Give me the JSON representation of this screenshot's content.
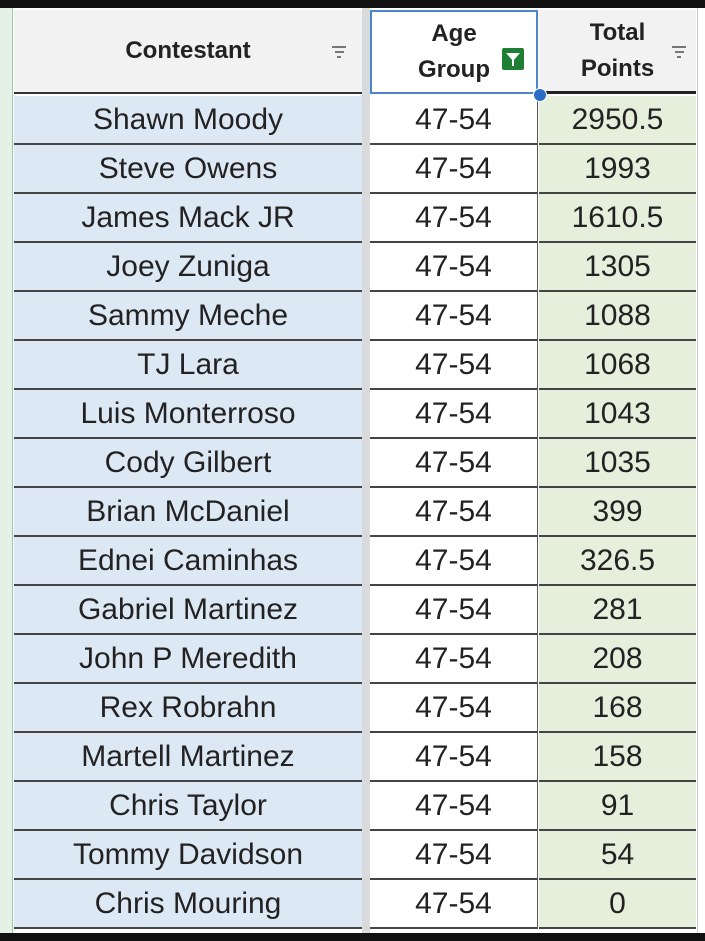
{
  "headers": {
    "contestant": "Contestant",
    "age_line1": "Age",
    "age_line2": "Group",
    "points_line1": "Total",
    "points_line2": "Points"
  },
  "icons": {
    "contestant_filter": "filter-lines-icon",
    "age_filter": "filter-active-funnel-icon",
    "points_filter": "filter-lines-icon"
  },
  "colors": {
    "name_fill": "#dde8f5",
    "points_fill": "#e5efdc",
    "active_filter": "#1e7e34",
    "selection": "#4a86c8"
  },
  "rows": [
    {
      "name": "Shawn Moody",
      "age": "47-54",
      "points": "2950.5"
    },
    {
      "name": "Steve Owens",
      "age": "47-54",
      "points": "1993"
    },
    {
      "name": "James Mack JR",
      "age": "47-54",
      "points": "1610.5"
    },
    {
      "name": "Joey Zuniga",
      "age": "47-54",
      "points": "1305"
    },
    {
      "name": "Sammy Meche",
      "age": "47-54",
      "points": "1088"
    },
    {
      "name": "TJ Lara",
      "age": "47-54",
      "points": "1068"
    },
    {
      "name": "Luis Monterroso",
      "age": "47-54",
      "points": "1043"
    },
    {
      "name": "Cody Gilbert",
      "age": "47-54",
      "points": "1035"
    },
    {
      "name": "Brian McDaniel",
      "age": "47-54",
      "points": "399"
    },
    {
      "name": "Ednei Caminhas",
      "age": "47-54",
      "points": "326.5"
    },
    {
      "name": "Gabriel Martinez",
      "age": "47-54",
      "points": "281"
    },
    {
      "name": "John P Meredith",
      "age": "47-54",
      "points": "208"
    },
    {
      "name": "Rex Robrahn",
      "age": "47-54",
      "points": "168"
    },
    {
      "name": "Martell Martinez",
      "age": "47-54",
      "points": "158"
    },
    {
      "name": "Chris Taylor",
      "age": "47-54",
      "points": "91"
    },
    {
      "name": "Tommy Davidson",
      "age": "47-54",
      "points": "54"
    },
    {
      "name": "Chris Mouring",
      "age": "47-54",
      "points": "0"
    }
  ]
}
